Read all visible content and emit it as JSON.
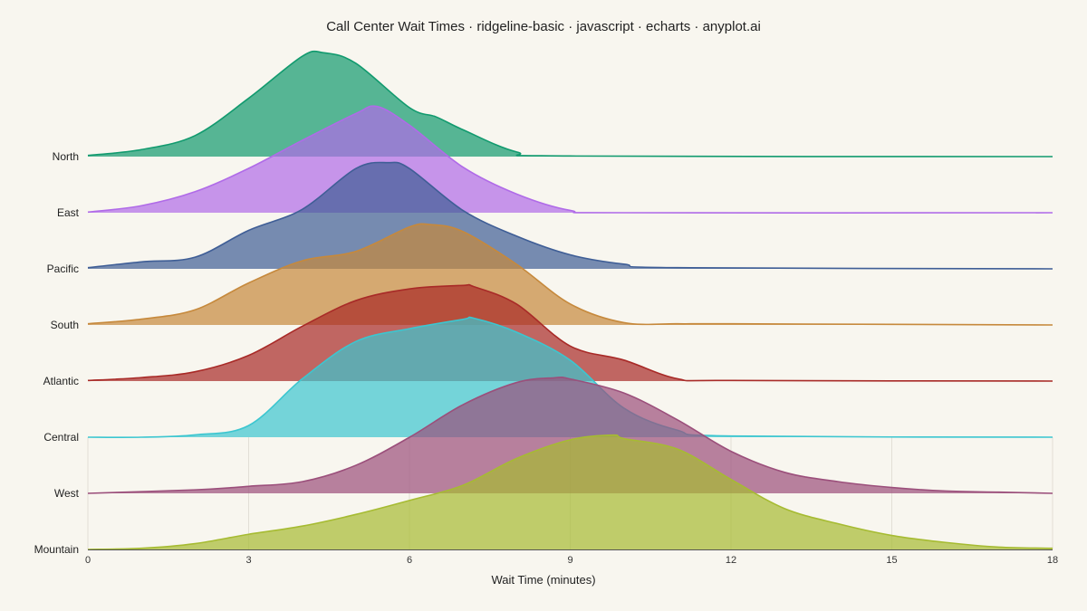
{
  "chart_data": {
    "type": "area",
    "title": "Call Center Wait Times · ridgeline-basic · javascript · echarts · anyplot.ai",
    "xlabel": "Wait Time (minutes)",
    "ylabel": "",
    "xlim": [
      0,
      18
    ],
    "x_ticks": [
      "0",
      "3",
      "6",
      "9",
      "12",
      "15",
      "18"
    ],
    "grid": true,
    "series": [
      {
        "name": "North",
        "color": "#119a6e",
        "x": [
          0,
          1,
          2,
          3,
          4,
          4.4,
          5,
          6,
          6.5,
          7,
          8,
          9,
          18
        ],
        "y": [
          0.1,
          0.6,
          1.8,
          5.0,
          8.6,
          8.9,
          8.0,
          4.2,
          3.4,
          2.3,
          0.4,
          0.05,
          0
        ]
      },
      {
        "name": "East",
        "color": "#b06be8",
        "x": [
          0,
          1,
          2,
          3,
          4,
          5,
          5.4,
          6,
          7,
          8,
          9,
          10,
          18
        ],
        "y": [
          0.05,
          0.6,
          1.8,
          3.8,
          6.2,
          8.5,
          9.1,
          7.5,
          3.9,
          1.6,
          0.2,
          0,
          0
        ]
      },
      {
        "name": "Pacific",
        "color": "#3f5e96",
        "x": [
          0,
          1,
          2,
          3,
          4,
          5,
          5.6,
          6,
          7,
          8,
          9,
          10,
          11,
          18
        ],
        "y": [
          0.1,
          0.6,
          1.0,
          3.3,
          5.1,
          8.6,
          9.1,
          8.6,
          5.0,
          2.8,
          1.2,
          0.4,
          0.1,
          0
        ]
      },
      {
        "name": "South",
        "color": "#c6893c",
        "x": [
          0,
          1,
          2,
          3,
          4,
          5,
          6,
          6.4,
          7,
          8,
          9,
          10,
          11,
          12,
          18
        ],
        "y": [
          0.1,
          0.5,
          1.3,
          3.6,
          5.5,
          6.3,
          8.4,
          8.6,
          8.0,
          5.2,
          1.8,
          0.2,
          0.1,
          0.1,
          0
        ]
      },
      {
        "name": "Atlantic",
        "color": "#a82a27",
        "x": [
          0,
          1,
          2,
          3,
          4,
          5,
          6,
          7,
          7.2,
          8,
          9,
          10,
          11,
          12,
          18
        ],
        "y": [
          0.05,
          0.3,
          0.8,
          2.2,
          4.7,
          6.9,
          7.9,
          8.2,
          8.1,
          6.6,
          3.0,
          1.8,
          0.2,
          0.05,
          0
        ]
      },
      {
        "name": "Central",
        "color": "#3cc6d0",
        "x": [
          0,
          1,
          2,
          3,
          4,
          5,
          6,
          7,
          7.2,
          8,
          9,
          10,
          11,
          12,
          18
        ],
        "y": [
          0,
          0,
          0.2,
          1.0,
          5.0,
          8.2,
          9.3,
          10.1,
          10.2,
          9.0,
          6.6,
          2.5,
          0.6,
          0.1,
          0
        ]
      },
      {
        "name": "West",
        "color": "#9b4f7b",
        "x": [
          0,
          2,
          3,
          4,
          5,
          6,
          7,
          8,
          8.7,
          9,
          10,
          11,
          12,
          13,
          14,
          15,
          16,
          17,
          18
        ],
        "y": [
          0,
          0.3,
          0.6,
          1.0,
          2.4,
          4.8,
          7.6,
          9.5,
          9.9,
          9.8,
          8.6,
          6.3,
          3.6,
          1.8,
          1.0,
          0.5,
          0.2,
          0.1,
          0
        ]
      },
      {
        "name": "Mountain",
        "color": "#a6bb32",
        "x": [
          0,
          1,
          2,
          3,
          4,
          5,
          6,
          7,
          8,
          9,
          9.8,
          10,
          11,
          12,
          13,
          14,
          15,
          16,
          17,
          18
        ],
        "y": [
          0,
          0.1,
          0.5,
          1.3,
          2.0,
          3.0,
          4.2,
          5.5,
          7.8,
          9.4,
          9.8,
          9.5,
          8.6,
          6.0,
          3.5,
          2.2,
          1.2,
          0.6,
          0.2,
          0.1
        ]
      }
    ]
  }
}
